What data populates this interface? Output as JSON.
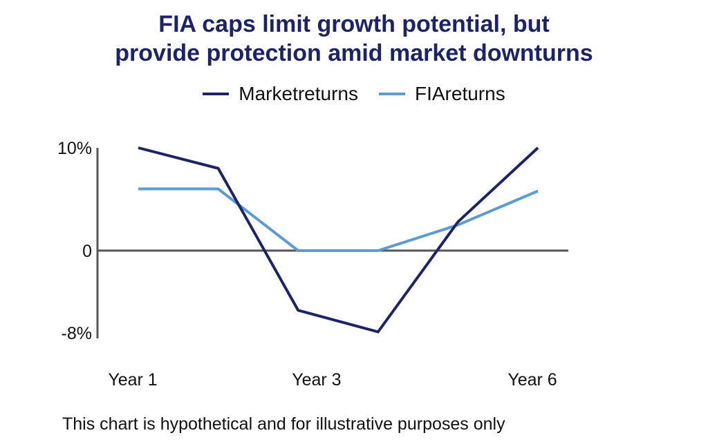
{
  "chart_data": {
    "type": "line",
    "title_lines": [
      "FIA caps limit growth potential, but",
      "provide protection amid market downturns"
    ],
    "legend": [
      {
        "label": "Marketreturns",
        "color": "#1c2369"
      },
      {
        "label": "FIAreturns",
        "color": "#5b9bd5"
      }
    ],
    "x": [
      1,
      2,
      3,
      4,
      5,
      6
    ],
    "x_tick_labels": [
      {
        "x": 1,
        "label": "Year 1"
      },
      {
        "x": 3.3,
        "label": "Year 3"
      },
      {
        "x": 6,
        "label": "Year 6"
      }
    ],
    "y_tick_labels": [
      {
        "y": 10,
        "label": "10%"
      },
      {
        "y": 0,
        "label": "0"
      },
      {
        "y": -8,
        "label": "-8%"
      }
    ],
    "ylim": [
      -8,
      10
    ],
    "series": [
      {
        "name": "Marketreturns",
        "color": "#1c2369",
        "points": [
          [
            1,
            10
          ],
          [
            2,
            8
          ],
          [
            3,
            -5.8
          ],
          [
            4,
            -7.9
          ],
          [
            5,
            2.8
          ],
          [
            6,
            10
          ]
        ]
      },
      {
        "name": "FIAreturns",
        "color": "#5b9bd5",
        "points": [
          [
            1,
            6
          ],
          [
            2,
            6
          ],
          [
            3,
            0
          ],
          [
            4,
            0
          ],
          [
            5,
            2.5
          ],
          [
            6,
            5.8
          ]
        ]
      }
    ],
    "grid": false,
    "legend_position": "top-center"
  },
  "footnote": "This chart is hypothetical and for illustrative purposes only"
}
